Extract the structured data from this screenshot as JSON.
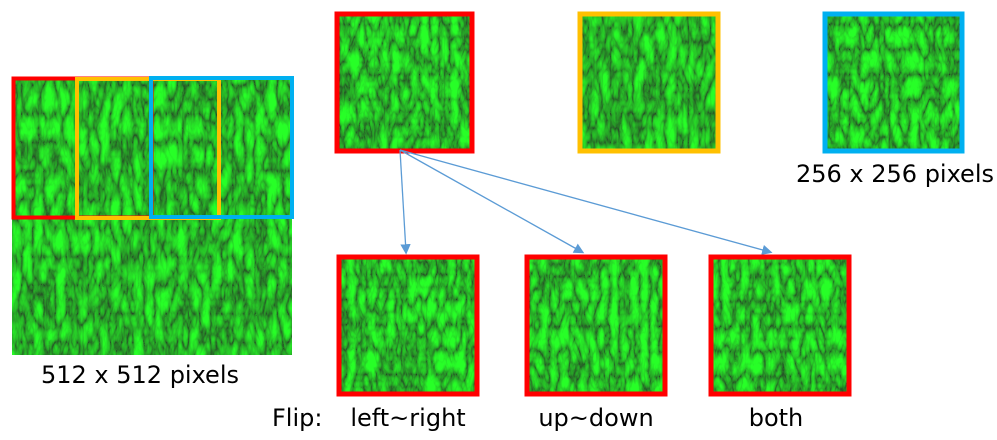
{
  "source": {
    "caption": "512 x 512 pixels"
  },
  "crops": {
    "caption": "256 x 256 pixels"
  },
  "flips": {
    "prefix": "Flip:",
    "labels": [
      "left~right",
      "up~down",
      "both"
    ]
  }
}
